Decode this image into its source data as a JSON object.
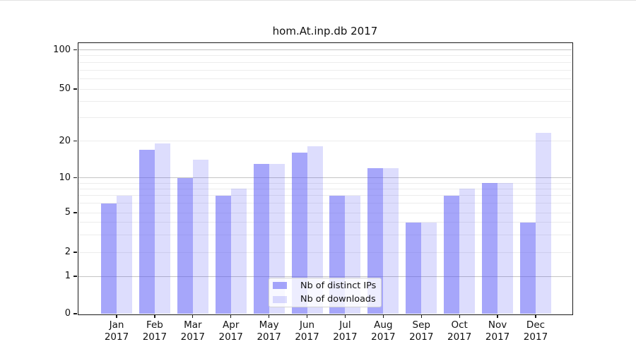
{
  "chart_data": {
    "type": "bar",
    "title": "hom.At.inp.db 2017",
    "categories": [
      "Jan",
      "Feb",
      "Mar",
      "Apr",
      "May",
      "Jun",
      "Jul",
      "Aug",
      "Sep",
      "Oct",
      "Nov",
      "Dec"
    ],
    "x_tick_second_line": "2017",
    "series": [
      {
        "key": "distinct-ips",
        "name": "Nb of distinct IPs",
        "color": "rgba(85,85,245,0.52)",
        "values": [
          6,
          17,
          10,
          7,
          13,
          16,
          7,
          12,
          4,
          7,
          9,
          4
        ]
      },
      {
        "key": "downloads",
        "name": "Nb of downloads",
        "color": "rgba(85,85,245,0.20)",
        "values": [
          7,
          19,
          14,
          8,
          13,
          18,
          7,
          12,
          4,
          8,
          9,
          23
        ]
      }
    ],
    "y_axis": {
      "scale": "log10(1+x)",
      "tick_labels": [
        100,
        50,
        20,
        10,
        5,
        2,
        1,
        0
      ],
      "major_gridlines": [
        1,
        10,
        100
      ],
      "minor_gridlines": [
        2,
        3,
        4,
        5,
        6,
        7,
        8,
        9,
        20,
        30,
        40,
        50,
        60,
        70,
        80,
        90
      ],
      "ylim": [
        0,
        112
      ]
    },
    "legend": {
      "position": "lower-center-inside"
    }
  },
  "colors": {
    "bar_base": "#5555f5",
    "gridline_major": "#c4c4c4",
    "gridline_minor": "#ececec",
    "spine": "#1a1a1a",
    "text": "#111111",
    "legend_bg": "rgba(255,255,255,0.8)",
    "legend_border": "#d2d2d2"
  }
}
